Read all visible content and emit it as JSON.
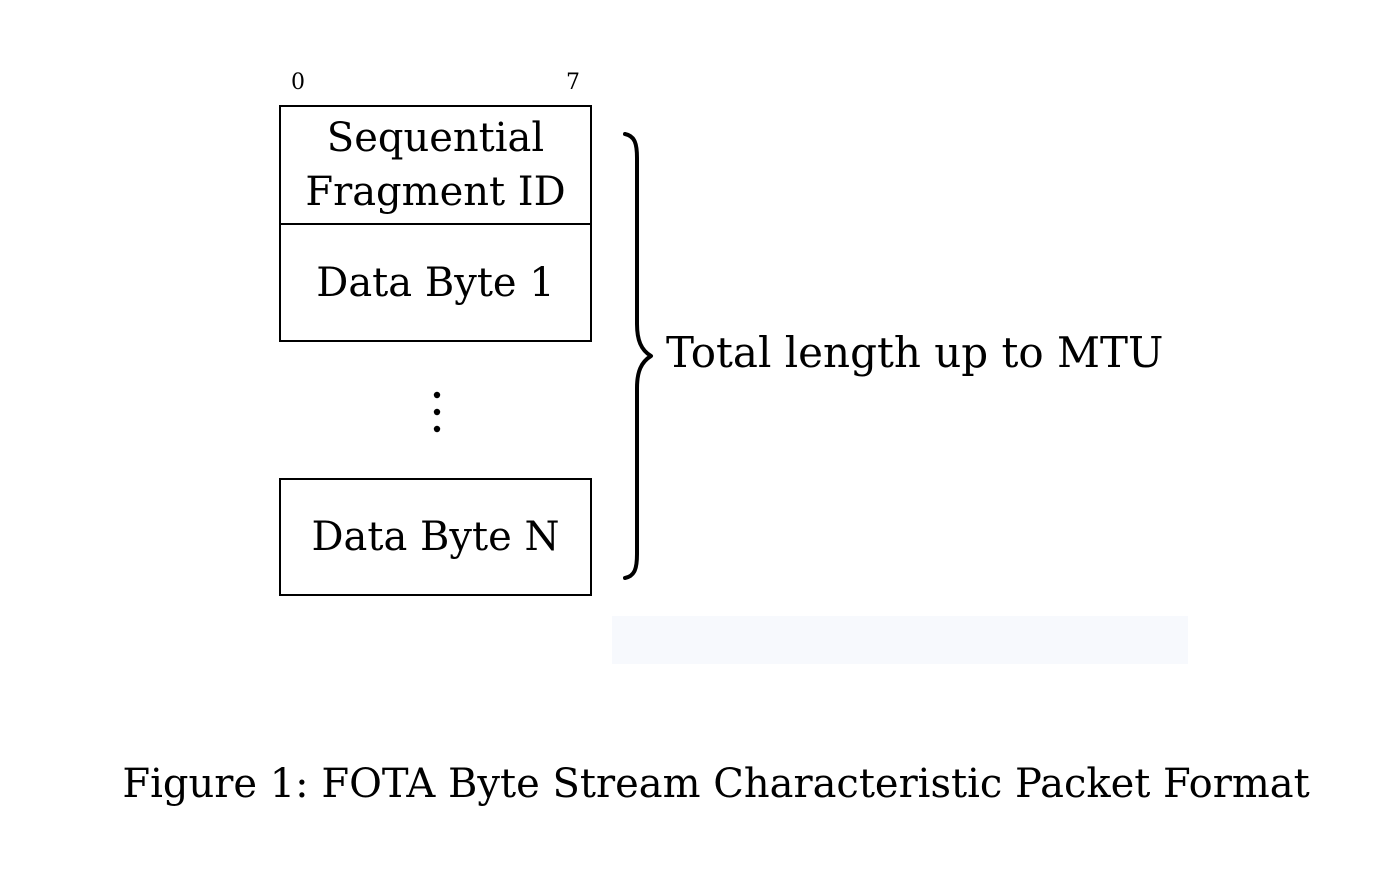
{
  "diagram": {
    "bit_labels": {
      "start": "0",
      "end": "7"
    },
    "fields": {
      "header_line1": "Sequential",
      "header_line2": "Fragment ID",
      "first_data": "Data Byte 1",
      "last_data": "Data Byte N"
    },
    "brace_label": "Total length up to MTU",
    "caption": "Figure 1: FOTA Byte Stream Characteristic Packet Format"
  }
}
